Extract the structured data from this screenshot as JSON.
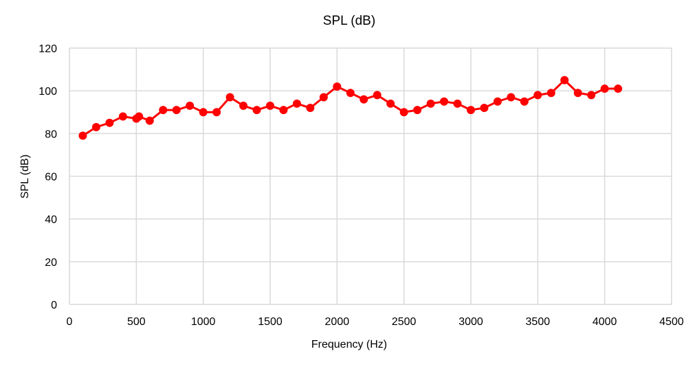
{
  "chart_data": {
    "type": "line",
    "title": "SPL (dB)",
    "xlabel": "Frequency (Hz)",
    "ylabel": "SPL (dB)",
    "xlim": [
      0,
      4500
    ],
    "ylim": [
      0,
      120
    ],
    "xticks": [
      0,
      500,
      1000,
      1500,
      2000,
      2500,
      3000,
      3500,
      4000,
      4500
    ],
    "yticks": [
      0,
      20,
      40,
      60,
      80,
      100,
      120
    ],
    "grid": true,
    "legend": null,
    "series": [
      {
        "name": "SPL (dB)",
        "color": "#ff0000",
        "x": [
          100,
          200,
          300,
          400,
          500,
          520,
          600,
          700,
          800,
          900,
          1000,
          1100,
          1200,
          1300,
          1400,
          1500,
          1600,
          1700,
          1800,
          1900,
          2000,
          2100,
          2200,
          2300,
          2400,
          2500,
          2600,
          2700,
          2800,
          2900,
          3000,
          3100,
          3200,
          3300,
          3400,
          3500,
          3600,
          3700,
          3800,
          3900,
          4000,
          4100
        ],
        "values": [
          79,
          83,
          85,
          88,
          87,
          88,
          86,
          91,
          91,
          93,
          90,
          90,
          97,
          93,
          91,
          93,
          91,
          94,
          92,
          97,
          102,
          99,
          96,
          98,
          94,
          90,
          91,
          94,
          95,
          94,
          91,
          92,
          95,
          97,
          95,
          98,
          99,
          105,
          99,
          98,
          101,
          101
        ]
      }
    ]
  }
}
